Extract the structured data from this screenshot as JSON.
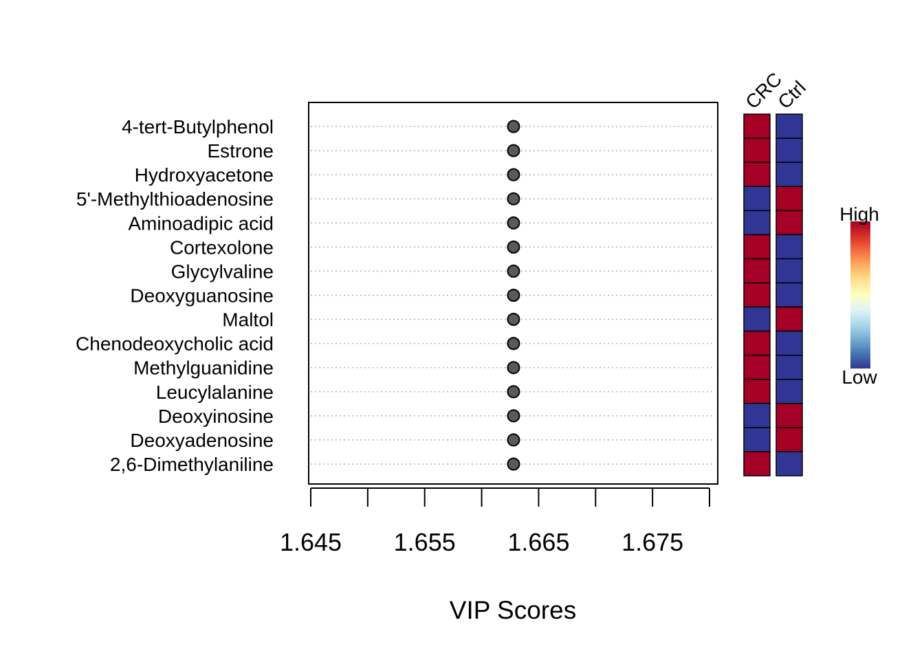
{
  "chart_data": {
    "type": "scatter",
    "xlabel": "VIP Scores",
    "xlim": [
      1.645,
      1.68
    ],
    "x_ticks": [
      1.645,
      1.65,
      1.655,
      1.66,
      1.665,
      1.67,
      1.675,
      1.68
    ],
    "x_tick_labels": [
      "1.645",
      "1.655",
      "1.665",
      "1.675"
    ],
    "x_tick_label_values": [
      1.645,
      1.655,
      1.665,
      1.675
    ],
    "features": [
      "4-tert-Butylphenol",
      "Estrone",
      "Hydroxyacetone",
      "5'-Methylthioadenosine",
      "Aminoadipic acid",
      "Cortexolone",
      "Glycylvaline",
      "Deoxyguanosine",
      "Maltol",
      "Chenodeoxycholic acid",
      "Methylguanidine",
      "Leucylalanine",
      "Deoxyinosine",
      "Deoxyadenosine",
      "2,6-Dimethylaniline"
    ],
    "values": [
      1.6628,
      1.6628,
      1.6628,
      1.6628,
      1.6628,
      1.6628,
      1.6628,
      1.6628,
      1.6628,
      1.6628,
      1.6628,
      1.6628,
      1.6628,
      1.6628,
      1.6628
    ],
    "grid": "horizontal-dotted",
    "heatmap": {
      "groups": [
        "CRC",
        "Ctrl"
      ],
      "levels": [
        [
          "high",
          "low"
        ],
        [
          "high",
          "low"
        ],
        [
          "high",
          "low"
        ],
        [
          "low",
          "high"
        ],
        [
          "low",
          "high"
        ],
        [
          "high",
          "low"
        ],
        [
          "high",
          "low"
        ],
        [
          "high",
          "low"
        ],
        [
          "low",
          "high"
        ],
        [
          "high",
          "low"
        ],
        [
          "high",
          "low"
        ],
        [
          "high",
          "low"
        ],
        [
          "low",
          "high"
        ],
        [
          "low",
          "high"
        ],
        [
          "high",
          "low"
        ]
      ],
      "colors": {
        "high": "#a50026",
        "low": "#313695"
      }
    },
    "legend": {
      "high_label": "High",
      "low_label": "Low",
      "placement": "right",
      "gradient": [
        "#a50026",
        "#d73027",
        "#f46d43",
        "#fdae61",
        "#fee090",
        "#ffffbf",
        "#e0f3f8",
        "#abd9e9",
        "#74add1",
        "#4575b4",
        "#313695"
      ]
    },
    "colors": {
      "point_fill": "#5a5a5a",
      "point_stroke": "#000000",
      "grid": "#b0b0b0"
    }
  }
}
